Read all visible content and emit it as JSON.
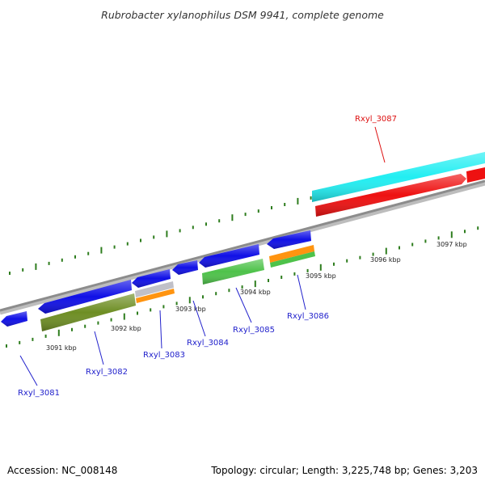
{
  "title": "Rubrobacter xylanophilus DSM 9941, complete genome",
  "footer": {
    "accession": "Accession: NC_008148",
    "summary": "Topology: circular; Length: 3,225,748 bp; Genes: 3,203"
  },
  "colors": {
    "backbone": "#8c8c8c",
    "tick_green": "#2e7d1e",
    "label_blue": "#2222cc",
    "label_red": "#dd1111",
    "gene_blue": "#1010e6",
    "gene_red": "#ee1111",
    "gene_cyan": "#22eef2",
    "gene_olive": "#6e8e24",
    "gene_orange": "#ff9410",
    "gene_green": "#4ec24a",
    "gene_grey": "#c0c0c8"
  },
  "scale": {
    "kbp_labels": [
      "3091 kbp",
      "3092 kbp",
      "3093 kbp",
      "3094 kbp",
      "3095 kbp",
      "3096 kbp",
      "3097 kbp"
    ]
  },
  "gene_labels": [
    {
      "text": "Rxyl_3081",
      "strand": "reverse"
    },
    {
      "text": "Rxyl_3082",
      "strand": "reverse"
    },
    {
      "text": "Rxyl_3083",
      "strand": "reverse"
    },
    {
      "text": "Rxyl_3084",
      "strand": "reverse"
    },
    {
      "text": "Rxyl_3085",
      "strand": "reverse"
    },
    {
      "text": "Rxyl_3086",
      "strand": "reverse"
    },
    {
      "text": "Rxyl_3087",
      "strand": "forward"
    }
  ]
}
